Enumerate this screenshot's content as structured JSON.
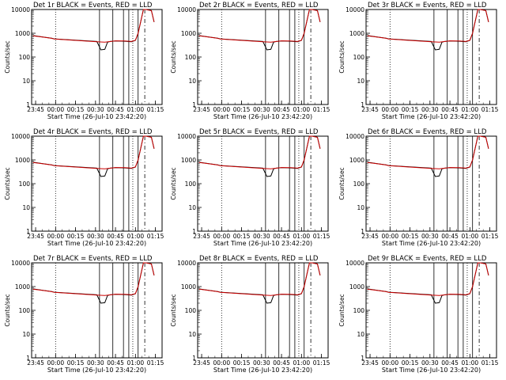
{
  "chart_data": {
    "type": "line",
    "layout": "3x3 grid of panels",
    "y_scale": "log",
    "ylim": [
      1,
      10000
    ],
    "ylabel": "Counts/sec",
    "xlabel": "Start Time (26-Jul-10 23:42:20)",
    "x_ticks": [
      "23:45",
      "00:00",
      "00:15",
      "00:30",
      "00:45",
      "01:00",
      "01:15"
    ],
    "y_ticks": [
      "1",
      "10",
      "100",
      "1000",
      "10000"
    ],
    "legend": "BLACK = Events, RED = LLD",
    "series_colors": {
      "Events": "#000000",
      "LLD": "#cc0000"
    },
    "panels": [
      {
        "title": "Det 1r  BLACK = Events, RED = LLD"
      },
      {
        "title": "Det 2r  BLACK = Events, RED = LLD"
      },
      {
        "title": "Det 3r  BLACK = Events, RED = LLD"
      },
      {
        "title": "Det 4r  BLACK = Events, RED = LLD"
      },
      {
        "title": "Det 5r  BLACK = Events, RED = LLD"
      },
      {
        "title": "Det 6r  BLACK = Events, RED = LLD"
      },
      {
        "title": "Det 7r  BLACK = Events, RED = LLD"
      },
      {
        "title": "Det 8r  BLACK = Events, RED = LLD"
      },
      {
        "title": "Det 9r  BLACK = Events, RED = LLD"
      }
    ],
    "series": [
      {
        "name": "Events",
        "x": [
          "23:43",
          "23:50",
          "23:57",
          "23:59",
          "00:31",
          "00:34",
          "00:37",
          "00:39",
          "00:41",
          "00:45",
          "00:52",
          "00:57",
          "01:00",
          "01:02",
          "01:06",
          "01:08",
          "01:12",
          "01:14"
        ],
        "y": [
          800,
          700,
          620,
          580,
          450,
          200,
          210,
          420,
          450,
          470,
          460,
          440,
          500,
          1000,
          10000,
          11000,
          9000,
          3000
        ]
      },
      {
        "name": "LLD",
        "x": [
          "23:43",
          "23:50",
          "23:57",
          "23:59",
          "00:31",
          "00:37",
          "00:45",
          "00:52",
          "00:57",
          "01:00",
          "01:02",
          "01:06",
          "01:08",
          "01:12",
          "01:14"
        ],
        "y": [
          780,
          690,
          610,
          570,
          440,
          420,
          480,
          470,
          450,
          510,
          1000,
          10000,
          11000,
          9000,
          3000
        ]
      }
    ],
    "vertical_markers": {
      "dotted": [
        "00:00",
        "00:58"
      ],
      "dashed": [
        "01:07"
      ],
      "solid": [
        "00:33",
        "00:43",
        "00:51",
        "00:55",
        "01:02"
      ]
    }
  }
}
